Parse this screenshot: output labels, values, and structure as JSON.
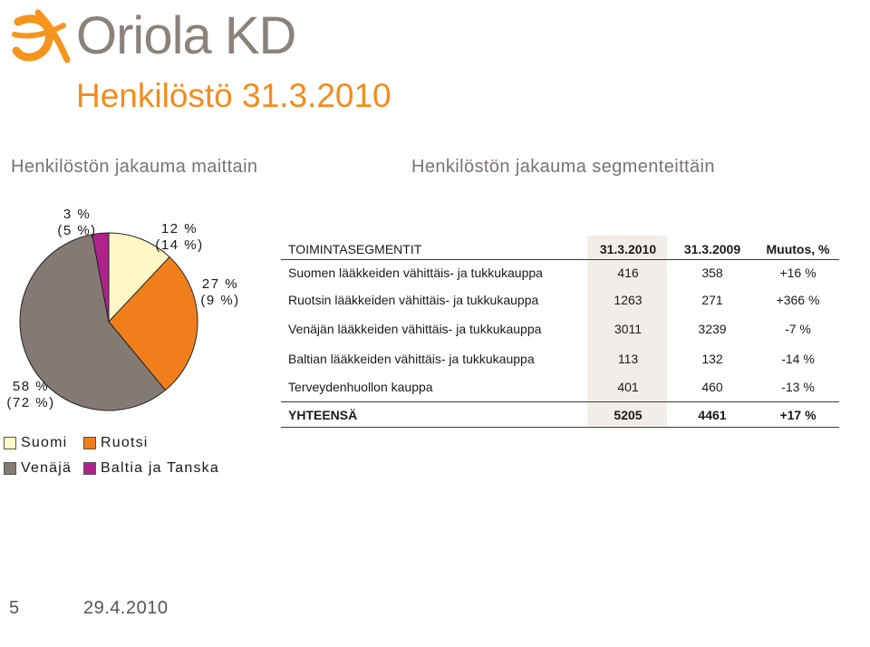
{
  "header": {
    "logo_text": "Oriola KD",
    "title": "Henkilöstö 31.3.2010",
    "subtitle_left": "Henkilöstön jakauma maittain",
    "subtitle_right": "Henkilöstön jakauma segmenteittäin"
  },
  "colors": {
    "accent": "#f28c1e",
    "suomi": "#fff7c6",
    "ruotsi": "#f07f1b",
    "venaja": "#857a73",
    "baltia": "#b0228c",
    "table_highlight": "#f2ede8"
  },
  "chart_data": {
    "type": "pie",
    "slices": [
      {
        "name": "Suomi",
        "value": 12,
        "prev": 14,
        "label": "12 %",
        "sublabel": "(14 %)"
      },
      {
        "name": "Ruotsi",
        "value": 27,
        "prev": 9,
        "label": "27 %",
        "sublabel": "(9 %)"
      },
      {
        "name": "Venäjä",
        "value": 58,
        "prev": 72,
        "label": "58 %",
        "sublabel": "(72 %)"
      },
      {
        "name": "Baltia ja Tanska",
        "value": 3,
        "prev": 5,
        "label": "3 %",
        "sublabel": "(5 %)"
      }
    ],
    "legend": [
      "Suomi",
      "Ruotsi",
      "Venäjä",
      "Baltia ja Tanska"
    ]
  },
  "table": {
    "headers": {
      "segment": "TOIMINTASEGMENTIT",
      "col1": "31.3.2010",
      "col2": "31.3.2009",
      "change": "Muutos, %"
    },
    "rows": [
      {
        "segment": "Suomen lääkkeiden vähittäis- ja tukkukauppa",
        "col1": "416",
        "col2": "358",
        "change": "+16 %"
      },
      {
        "segment": "Ruotsin lääkkeiden vähittäis- ja tukkukauppa",
        "col1": "1263",
        "col2": "271",
        "change": "+366 %"
      },
      {
        "segment": "Venäjän lääkkeiden vähittäis- ja tukkukauppa",
        "col1": "3011",
        "col2": "3239",
        "change": "-7 %"
      },
      {
        "segment": "Baltian lääkkeiden vähittäis- ja tukkukauppa",
        "col1": "113",
        "col2": "132",
        "change": "-14 %"
      },
      {
        "segment": "Terveydenhuollon kauppa",
        "col1": "401",
        "col2": "460",
        "change": "-13 %"
      }
    ],
    "total": {
      "segment": "YHTEENSÄ",
      "col1": "5205",
      "col2": "4461",
      "change": "+17 %"
    }
  },
  "footer": {
    "page": "5",
    "date": "29.4.2010"
  }
}
